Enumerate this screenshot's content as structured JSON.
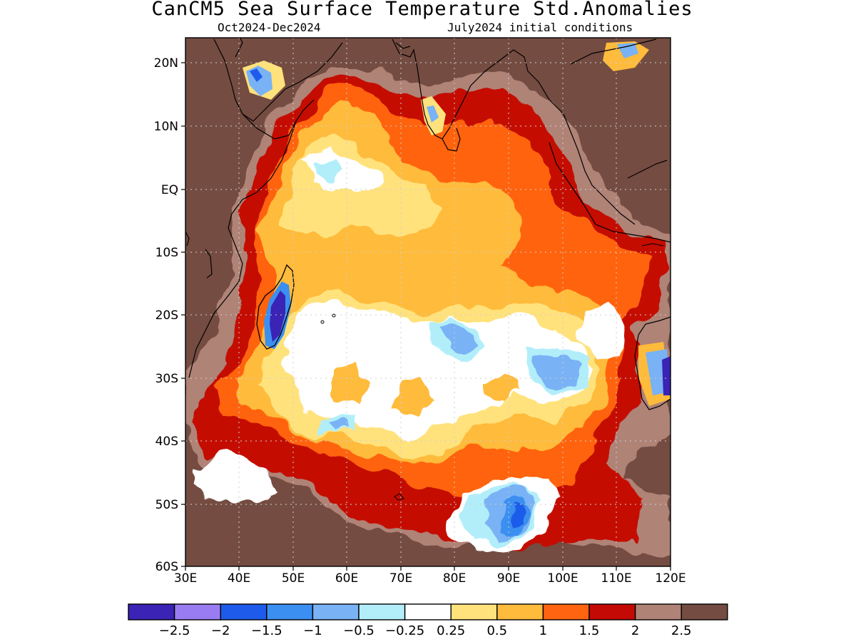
{
  "title": "CanCM5 Sea Surface Temperature Std.Anomalies",
  "subtitle_left": "Oct2024-Dec2024",
  "subtitle_right": "July2024 initial conditions",
  "lat_labels": [
    "20N",
    "10N",
    "EQ",
    "10S",
    "20S",
    "30S",
    "40S",
    "50S",
    "60S"
  ],
  "lon_labels": [
    "30E",
    "40E",
    "50E",
    "60E",
    "70E",
    "80E",
    "90E",
    "100E",
    "110E",
    "120E"
  ],
  "colorbar": {
    "colors": [
      "#3a23b5",
      "#9a7cf2",
      "#1f5bea",
      "#3b8ff0",
      "#79b2f5",
      "#b2eefa",
      "#ffffff",
      "#ffe27c",
      "#ffbb3b",
      "#ff6410",
      "#c40a05",
      "#b08377",
      "#744c41"
    ],
    "tick_labels": [
      "-2.5",
      "-2",
      "-1.5",
      "-1",
      "-0.5",
      "-0.25",
      "0.25",
      "0.5",
      "1",
      "1.5",
      "2",
      "2.5"
    ]
  }
}
